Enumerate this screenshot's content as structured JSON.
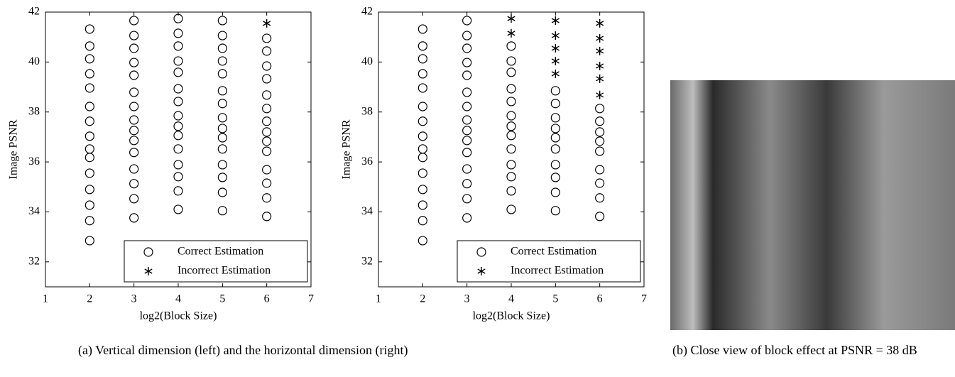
{
  "chart_data": [
    {
      "type": "scatter",
      "xlabel": "log2(Block Size)",
      "ylabel": "Image PSNR",
      "xlim": [
        1,
        7
      ],
      "ylim": [
        31,
        42
      ],
      "xticks": [
        1,
        2,
        3,
        4,
        5,
        6,
        7
      ],
      "yticks": [
        32,
        34,
        36,
        38,
        40,
        42
      ],
      "legend": "lower right",
      "series": [
        {
          "name": "Correct Estimation",
          "color": "#000000",
          "marker": "o",
          "x": [
            2,
            2,
            2,
            2,
            2,
            2,
            2,
            2,
            2,
            2,
            2,
            2,
            2,
            2,
            2,
            3,
            3,
            3,
            3,
            3,
            3,
            3,
            3,
            3,
            3,
            3,
            3,
            3,
            3,
            3,
            4,
            4,
            4,
            4,
            4,
            4,
            4,
            4,
            4,
            4,
            4,
            4,
            4,
            4,
            4,
            5,
            5,
            5,
            5,
            5,
            5,
            5,
            5,
            5,
            5,
            5,
            5,
            5,
            5,
            5,
            6,
            6,
            6,
            6,
            6,
            6,
            6,
            6,
            6,
            6,
            6,
            6,
            6,
            6
          ],
          "values": [
            41.32,
            40.64,
            40.13,
            39.53,
            38.96,
            38.22,
            37.63,
            37.03,
            36.52,
            36.18,
            35.55,
            34.9,
            34.27,
            33.65,
            32.85,
            41.66,
            41.06,
            40.55,
            39.98,
            39.47,
            38.79,
            38.22,
            37.68,
            37.26,
            36.86,
            36.38,
            35.72,
            35.13,
            34.53,
            33.76,
            41.74,
            41.15,
            40.64,
            40.04,
            39.59,
            38.93,
            38.42,
            37.85,
            37.43,
            37.06,
            36.52,
            35.89,
            35.41,
            34.84,
            34.1,
            41.66,
            41.06,
            40.55,
            40.04,
            39.53,
            38.85,
            38.34,
            37.77,
            37.34,
            36.97,
            36.52,
            35.89,
            35.38,
            34.78,
            34.05,
            40.95,
            40.44,
            39.84,
            39.33,
            38.68,
            38.14,
            37.63,
            37.2,
            36.83,
            36.43,
            35.69,
            35.15,
            34.56,
            33.82
          ]
        },
        {
          "name": "Incorrect Estimation",
          "color": "#000000",
          "marker": "*",
          "x": [
            6
          ],
          "values": [
            41.55
          ]
        }
      ]
    },
    {
      "type": "scatter",
      "xlabel": "log2(Block Size)",
      "ylabel": "Image PSNR",
      "xlim": [
        1,
        7
      ],
      "ylim": [
        31,
        42
      ],
      "xticks": [
        1,
        2,
        3,
        4,
        5,
        6,
        7
      ],
      "yticks": [
        32,
        34,
        36,
        38,
        40,
        42
      ],
      "legend": "lower right",
      "series": [
        {
          "name": "Correct Estimation",
          "color": "#000000",
          "marker": "o",
          "x": [
            2,
            2,
            2,
            2,
            2,
            2,
            2,
            2,
            2,
            2,
            2,
            2,
            2,
            2,
            2,
            3,
            3,
            3,
            3,
            3,
            3,
            3,
            3,
            3,
            3,
            3,
            3,
            3,
            3,
            3,
            4,
            4,
            4,
            4,
            4,
            4,
            4,
            4,
            4,
            4,
            4,
            4,
            4,
            5,
            5,
            5,
            5,
            5,
            5,
            5,
            5,
            5,
            5,
            6,
            6,
            6,
            6,
            6,
            6,
            6,
            6,
            6
          ],
          "values": [
            41.32,
            40.64,
            40.13,
            39.53,
            38.96,
            38.22,
            37.63,
            37.03,
            36.52,
            36.18,
            35.55,
            34.9,
            34.27,
            33.65,
            32.85,
            41.66,
            41.06,
            40.55,
            39.98,
            39.47,
            38.79,
            38.22,
            37.68,
            37.26,
            36.86,
            36.38,
            35.72,
            35.13,
            34.53,
            33.76,
            40.64,
            40.04,
            39.59,
            38.93,
            38.42,
            37.85,
            37.43,
            37.06,
            36.52,
            35.89,
            35.41,
            34.84,
            34.1,
            38.85,
            38.34,
            37.77,
            37.34,
            36.97,
            36.52,
            35.89,
            35.38,
            34.78,
            34.05,
            38.14,
            37.63,
            37.2,
            36.83,
            36.43,
            35.69,
            35.15,
            34.56,
            33.82
          ]
        },
        {
          "name": "Incorrect Estimation",
          "color": "#000000",
          "marker": "*",
          "x": [
            4,
            4,
            5,
            5,
            5,
            5,
            5,
            6,
            6,
            6,
            6,
            6,
            6
          ],
          "values": [
            41.74,
            41.15,
            41.66,
            41.06,
            40.55,
            40.04,
            39.53,
            41.55,
            40.95,
            40.44,
            39.84,
            39.33,
            38.68
          ]
        }
      ]
    }
  ],
  "captions": [
    "(a) Vertical dimension (left) and the horizontal dimension (right)",
    "(b) Close view of block effect at PSNR = 38 dB"
  ]
}
